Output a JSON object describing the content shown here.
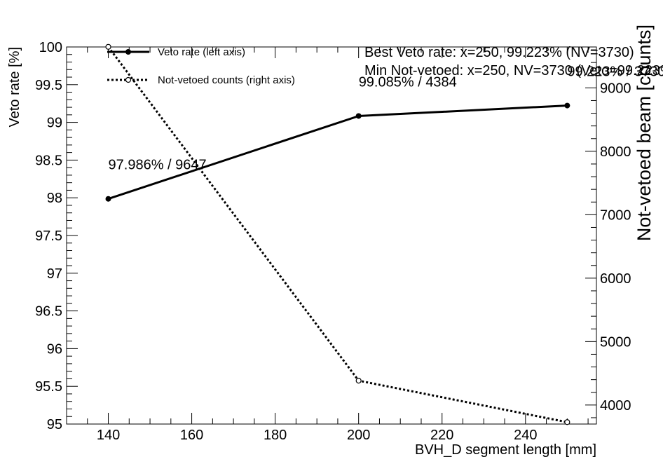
{
  "chart_data": {
    "type": "line",
    "xlabel": "BVH_D segment length [mm]",
    "ylabel": "Veto rate [%]",
    "y2label": "Not-vetoed beam [counts]",
    "xlim": [
      130,
      257
    ],
    "ylim": [
      95,
      100
    ],
    "y2lim": [
      3700,
      9645
    ],
    "x_ticks": [
      140,
      160,
      180,
      200,
      220,
      240
    ],
    "y_ticks": [
      95,
      95.5,
      96,
      96.5,
      97,
      97.5,
      98,
      98.5,
      99,
      99.5,
      100
    ],
    "y_tick_labels": [
      "95",
      "95.5",
      "96",
      "96.5",
      "97",
      "97.5",
      "98",
      "98.5",
      "99",
      "99.5",
      "100"
    ],
    "y2_ticks": [
      4000,
      5000,
      6000,
      7000,
      8000,
      9000
    ],
    "grid": false,
    "legend_position": "top-left",
    "series": [
      {
        "name": "Veto rate (left axis)",
        "axis": "left",
        "style": "solid",
        "marker": "filled-circle",
        "x": [
          140,
          200,
          250
        ],
        "y": [
          97.986,
          99.085,
          99.223
        ]
      },
      {
        "name": "Not-vetoed counts (right axis)",
        "axis": "right",
        "style": "dotted",
        "marker": "open-circle",
        "x": [
          140,
          200,
          250
        ],
        "y": [
          9647,
          4384,
          3730
        ]
      }
    ],
    "point_labels": [
      {
        "x": 140,
        "text": "97.986% / 9647"
      },
      {
        "x": 200,
        "text": "99.085% / 4384"
      },
      {
        "x": 250,
        "text": "99.223% / 3730"
      }
    ],
    "annotations": [
      "Best Veto rate: x=250, 99.223%  (NV=3730)",
      "Min Not-vetoed: x=250, NV=3730  (Veto=99.223%)"
    ]
  }
}
